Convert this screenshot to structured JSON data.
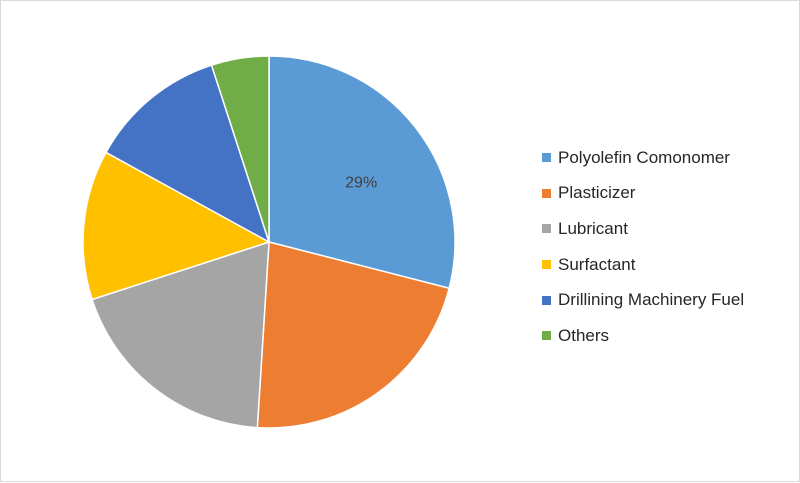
{
  "chart_data": {
    "type": "pie",
    "title": "",
    "slices": [
      {
        "label": "Polyolefin Comonomer",
        "value": 29,
        "color": "#5B9BD5",
        "data_label": "29%"
      },
      {
        "label": "Plasticizer",
        "value": 22,
        "color": "#ED7D31",
        "data_label": ""
      },
      {
        "label": "Lubricant",
        "value": 19,
        "color": "#A5A5A5",
        "data_label": ""
      },
      {
        "label": "Surfactant",
        "value": 13,
        "color": "#FFC000",
        "data_label": ""
      },
      {
        "label": "Drillining Machinery Fuel",
        "value": 12,
        "color": "#4472C4",
        "data_label": ""
      },
      {
        "label": "Others",
        "value": 5,
        "color": "#70AD47",
        "data_label": ""
      }
    ],
    "legend_position": "right"
  }
}
